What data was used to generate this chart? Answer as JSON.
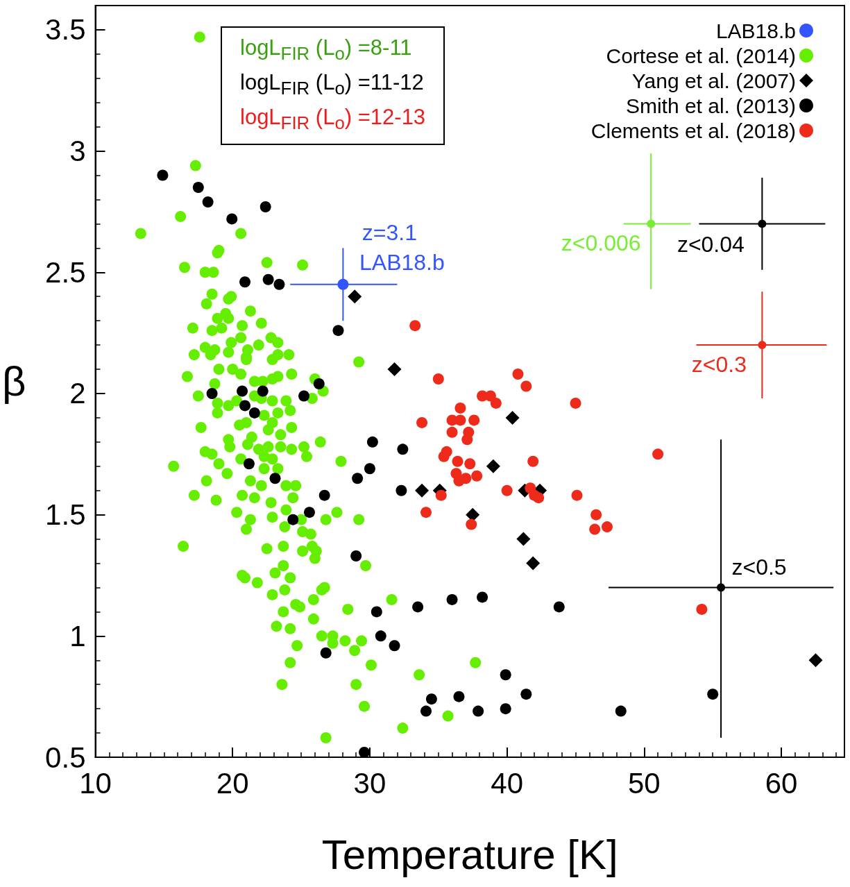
{
  "chart_data": {
    "type": "scatter",
    "xlabel": "Temperature [K]",
    "ylabel": "β",
    "xlim": [
      10,
      64.6
    ],
    "xticks": [
      10,
      20,
      30,
      40,
      50,
      60
    ],
    "ylim": [
      0.5,
      3.6
    ],
    "yticks": [
      0.5,
      1,
      1.5,
      2,
      2.5,
      3,
      3.5
    ],
    "grid": false,
    "legend": "top right",
    "marker": "circle",
    "annotations": [
      "logL$_{FIR}$ (L$_{o}$) =8-11",
      "logL$_{FIR}$ (L$_{o}$) =11-12",
      "logL$_{FIR}$ (L$_{o}$) =12-13",
      {
        "text": "z=3.1",
        "x": 28.05,
        "y": 2.45
      },
      {
        "text": "LAB18.b",
        "x": 28.05,
        "y": 2.45
      },
      {
        "text": "z<0.006",
        "x": 50.5,
        "y": 2.7
      },
      {
        "text": "z<0.04",
        "x": 58.6,
        "y": 2.7
      },
      {
        "text": "z<0.3",
        "x": 58.6,
        "y": 2.2
      },
      {
        "text": "z<0.5",
        "x": 55.6,
        "y": 1.2
      }
    ],
    "series": [
      {
        "name": "LAB18.b",
        "color": "#3355ff",
        "x": [
          28.05
        ],
        "values": [
          2.45
        ],
        "xerrors": [
          [
            24.2,
            32.0
          ]
        ],
        "errors": [
          [
            2.3,
            2.6
          ]
        ]
      },
      {
        "name": "Cortese et al. (2014)",
        "color": "#66ee00",
        "x": [
          13.3,
          17.6,
          20.6,
          25.1,
          29.2,
          19.7,
          21.9,
          23.3,
          24.1,
          23.3,
          22.2,
          18.9,
          22.1,
          22.9,
          25.8,
          25.9,
          23.6,
          37.7,
          17.3,
          16.2,
          19.0,
          18.9,
          16.5,
          22.5,
          18.0,
          18.6,
          18.5,
          19.9,
          19.7,
          18.1,
          21.3,
          19.5,
          22.1,
          17.1,
          18.9,
          18.5,
          20.7,
          19.2,
          18.0,
          18.7,
          17.2,
          19.9,
          20.6,
          21.1,
          22.8,
          23.3,
          21.0,
          19.7,
          18.4,
          21.0,
          22.9,
          16.7,
          19.0,
          20.0,
          20.6,
          18.7,
          21.6,
          22.9,
          24.3,
          26.0,
          26.6,
          17.5,
          19.7,
          18.9,
          20.3,
          21.6,
          23.9,
          24.2,
          23.3,
          22.3,
          17.7,
          20.5,
          21.0,
          24.3,
          22.9,
          19.7,
          19.8,
          21.4,
          22.6,
          23.5,
          21.1,
          21.9,
          22.6,
          23.5,
          24.3,
          25.2,
          26.4,
          25.4,
          18.0,
          18.5,
          20.6,
          22.3,
          22.9,
          15.7,
          19.0,
          19.6,
          22.3,
          23.3,
          27.9,
          18.1,
          21.3,
          22.1,
          23.9,
          24.6,
          17.2,
          18.8,
          20.7,
          21.6,
          22.8,
          24.4,
          20.3,
          21.3,
          22.9,
          23.9,
          26.8,
          27.6,
          29.2,
          25.0,
          21.0,
          23.8,
          25.1,
          25.7,
          16.4,
          22.5,
          23.7,
          25.8,
          25.1,
          26.1,
          26.0,
          29.7,
          20.7,
          20.9,
          21.8,
          23.1,
          23.7,
          24.2,
          22.9,
          23.8,
          26.5,
          26.7,
          24.6,
          24.9,
          23.7,
          25.9,
          28.4,
          23.2,
          24.2,
          26.5,
          27.3,
          27.3,
          28.2,
          29.4,
          24.7,
          28.9,
          30.1,
          24.2,
          29.0,
          29.6,
          26.8,
          31.6,
          33.6,
          35.7,
          32.4
        ],
        "values": [
          2.66,
          3.47,
          2.66,
          2.53,
          2.13,
          2.31,
          2.2,
          2.16,
          2.16,
          2.07,
          2.05,
          1.96,
          1.98,
          1.97,
          1.98,
          1.15,
          0.8,
          0.89,
          2.94,
          2.73,
          2.59,
          2.58,
          2.52,
          2.54,
          2.5,
          2.5,
          2.41,
          2.4,
          2.39,
          2.37,
          2.34,
          2.33,
          2.29,
          2.27,
          2.31,
          2.26,
          2.28,
          2.27,
          2.19,
          2.18,
          2.16,
          2.21,
          2.23,
          2.18,
          2.23,
          2.21,
          2.15,
          2.17,
          2.16,
          2.14,
          2.14,
          2.07,
          2.1,
          2.1,
          2.08,
          2.04,
          2.05,
          2.06,
          2.08,
          2.06,
          2.01,
          1.99,
          1.95,
          1.92,
          1.97,
          1.99,
          1.97,
          1.93,
          1.92,
          1.91,
          1.86,
          1.87,
          1.88,
          1.86,
          1.88,
          1.81,
          1.78,
          1.82,
          1.85,
          1.83,
          1.79,
          1.77,
          1.78,
          1.78,
          1.77,
          1.78,
          1.8,
          1.74,
          1.76,
          1.75,
          1.73,
          1.74,
          1.73,
          1.7,
          1.71,
          1.67,
          1.69,
          1.69,
          1.72,
          1.64,
          1.64,
          1.62,
          1.62,
          1.62,
          1.58,
          1.56,
          1.58,
          1.57,
          1.55,
          1.57,
          1.51,
          1.48,
          1.49,
          1.52,
          1.48,
          1.51,
          1.48,
          1.48,
          1.44,
          1.45,
          1.43,
          1.42,
          1.37,
          1.36,
          1.37,
          1.37,
          1.35,
          1.35,
          1.32,
          1.29,
          1.25,
          1.24,
          1.22,
          1.26,
          1.29,
          1.24,
          1.17,
          1.19,
          1.19,
          1.2,
          1.13,
          1.12,
          1.1,
          1.07,
          1.11,
          1.04,
          1.03,
          1.0,
          1.0,
          0.97,
          0.98,
          0.98,
          0.96,
          0.94,
          0.88,
          0.89,
          0.8,
          0.71,
          0.58,
          1.15,
          0.84,
          0.67,
          0.62
        ]
      },
      {
        "name": "Yang et al. (2007)",
        "color": "#000000",
        "marker": "diamond",
        "x": [
          28.9,
          31.8,
          40.4,
          39.0,
          33.8,
          35.1,
          37.5,
          41.2,
          41.9,
          41.3,
          42.4,
          62.5
        ],
        "values": [
          2.4,
          2.1,
          1.9,
          1.7,
          1.6,
          1.6,
          1.5,
          1.4,
          1.3,
          1.6,
          1.6,
          0.9
        ]
      },
      {
        "name": "Smith et al. (2013)",
        "color": "#000000",
        "x": [
          14.9,
          17.5,
          18.2,
          19.95,
          22.4,
          22.6,
          20.9,
          23.4,
          27.7,
          26.3,
          18.5,
          20.7,
          22.2,
          25.2,
          20.9,
          21.6,
          21.2,
          23.1,
          26.7,
          25.6,
          24.4,
          30.2,
          30.0,
          29.1,
          32.4,
          32.3,
          29.0,
          30.5,
          33.5,
          36.0,
          38.2,
          43.8,
          30.8,
          31.8,
          26.8,
          34.1,
          34.5,
          36.5,
          37.9,
          39.9,
          39.9,
          41.4,
          48.3,
          55.0,
          29.6
        ],
        "values": [
          2.9,
          2.85,
          2.79,
          2.72,
          2.77,
          2.47,
          2.46,
          2.45,
          2.26,
          2.04,
          2.0,
          2.01,
          2.01,
          1.99,
          1.95,
          1.92,
          1.71,
          1.65,
          1.58,
          1.51,
          1.48,
          1.8,
          1.69,
          1.65,
          1.77,
          1.6,
          1.33,
          1.1,
          1.12,
          1.15,
          1.16,
          1.12,
          1.0,
          0.96,
          0.93,
          0.69,
          0.74,
          0.75,
          0.69,
          0.7,
          0.84,
          0.76,
          0.69,
          0.76,
          0.52
        ]
      },
      {
        "name": "Clements et al. (2018)",
        "color": "#ee2a1a",
        "x": [
          33.3,
          35.0,
          40.8,
          41.4,
          45.0,
          38.2,
          38.8,
          39.2,
          36.6,
          36.0,
          36.6,
          37.6,
          33.8,
          36.0,
          37.2,
          37.1,
          35.6,
          35.4,
          36.4,
          37.3,
          41.9,
          36.3,
          37.0,
          37.8,
          36.5,
          40.0,
          41.7,
          42.0,
          42.3,
          45.1,
          35.2,
          34.1,
          37.4,
          46.5,
          46.4,
          47.3,
          51.0,
          54.2
        ],
        "values": [
          2.28,
          2.06,
          2.08,
          2.03,
          1.96,
          1.99,
          1.99,
          1.96,
          1.94,
          1.89,
          1.89,
          1.89,
          1.88,
          1.84,
          1.84,
          1.81,
          1.76,
          1.74,
          1.72,
          1.71,
          1.72,
          1.67,
          1.65,
          1.66,
          1.64,
          1.6,
          1.61,
          1.58,
          1.57,
          1.58,
          1.58,
          1.51,
          1.46,
          1.5,
          1.44,
          1.45,
          1.75,
          1.11
        ]
      },
      {
        "color": "#77ee33",
        "x": [
          50.5
        ],
        "values": [
          2.7
        ],
        "xerrors": [
          [
            48.5,
            53.4
          ]
        ],
        "errors": [
          [
            2.43,
            2.99
          ]
        ]
      },
      {
        "color": "#000000",
        "x": [
          58.6
        ],
        "values": [
          2.7
        ],
        "xerrors": [
          [
            54.0,
            63.2
          ]
        ],
        "errors": [
          [
            2.51,
            2.89
          ]
        ]
      },
      {
        "color": "#ee2a1a",
        "x": [
          58.6
        ],
        "values": [
          2.2
        ],
        "xerrors": [
          [
            53.8,
            63.3
          ]
        ],
        "errors": [
          [
            1.98,
            2.42
          ]
        ]
      },
      {
        "color": "#000000",
        "x": [
          55.6
        ],
        "values": [
          1.2
        ],
        "xerrors": [
          [
            47.4,
            63.8
          ]
        ],
        "errors": [
          [
            0.58,
            1.81
          ]
        ]
      }
    ]
  }
}
